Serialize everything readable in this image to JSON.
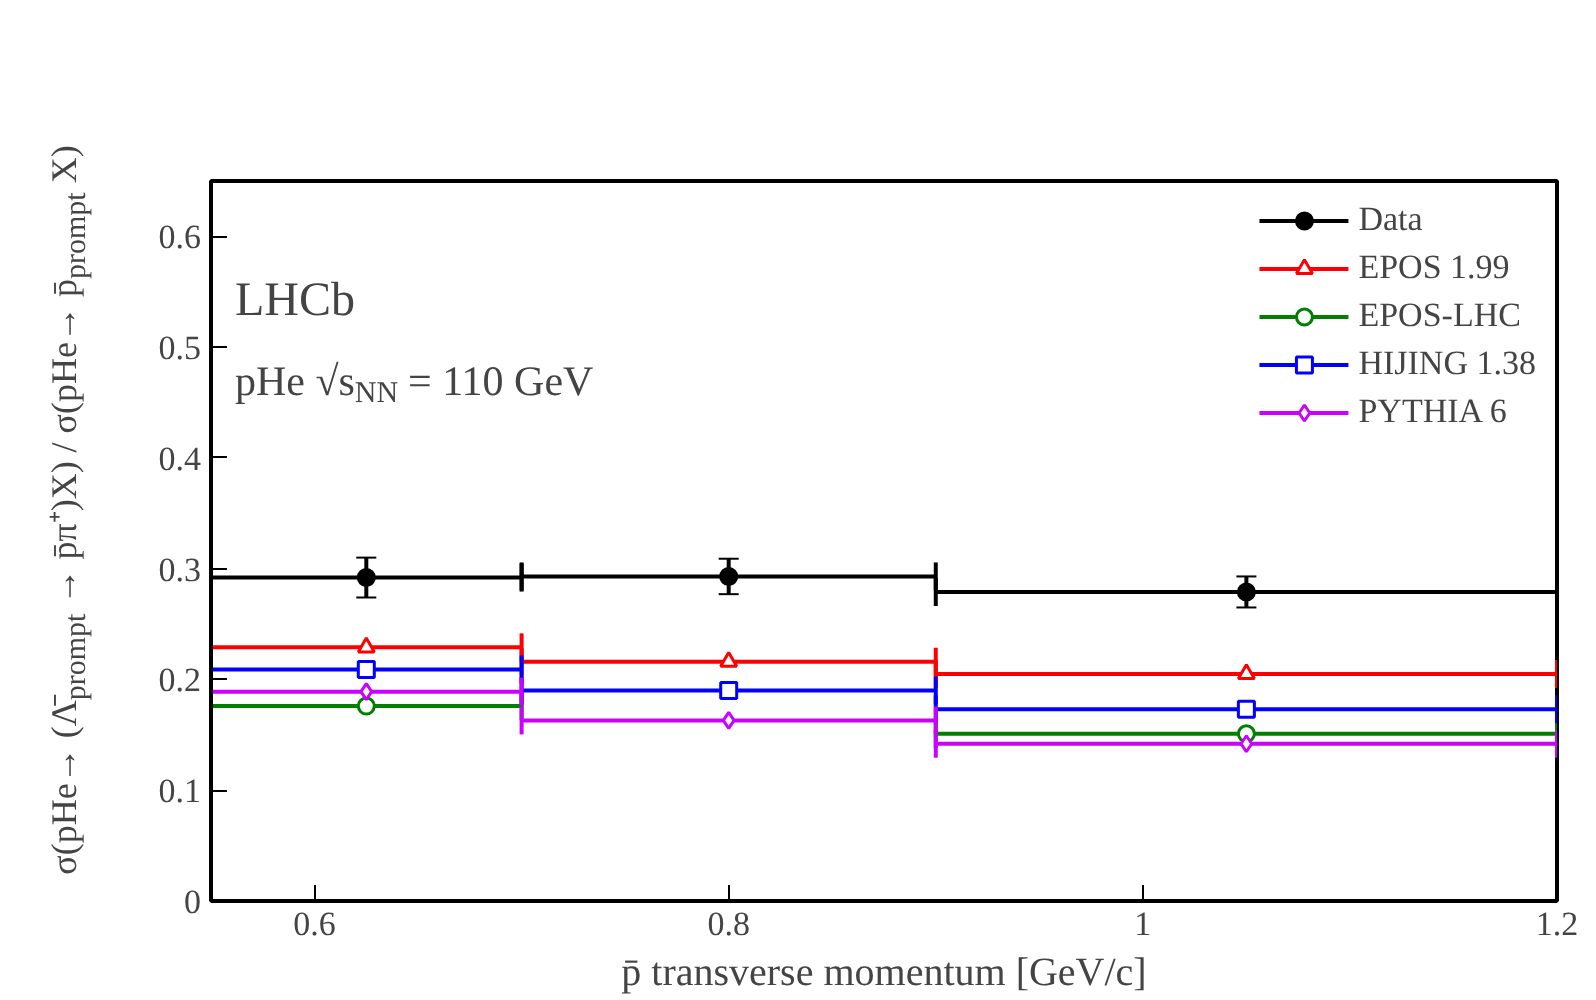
{
  "chart_data": {
    "type": "scatter",
    "xlabel": "p̄ transverse momentum [GeV/c]",
    "ylabel": "σ(pHe→ (Λ̄$_{prompt}$ → p̄π⁺)X) / σ(pHe→ p̄$_{prompt}$ X)",
    "annotations": [
      "LHCb",
      "pHe √s$_{NN}$ = 110 GeV"
    ],
    "x": [
      0.625,
      0.8,
      1.05
    ],
    "series": [
      {
        "name": "Data",
        "color": "#000000",
        "marker": "circle",
        "values": [
          0.292,
          0.293,
          0.279
        ],
        "errors": [
          0.018,
          0.016,
          0.014
        ],
        "xerrors": [
          0.075,
          0.1,
          0.15
        ]
      },
      {
        "name": "EPOS 1.99",
        "color": "#ff0000",
        "marker": "triangle",
        "values": [
          0.229,
          0.216,
          0.205
        ],
        "xerrors": [
          0.075,
          0.1,
          0.15
        ]
      },
      {
        "name": "EPOS-LHC",
        "color": "#007f00",
        "marker": "circle",
        "values": [
          0.176,
          null,
          0.151
        ],
        "xerrors": [
          0.075,
          null,
          0.15
        ]
      },
      {
        "name": "HIJING 1.38",
        "color": "#0000ff",
        "marker": "square",
        "values": [
          0.209,
          0.19,
          0.173
        ],
        "xerrors": [
          0.075,
          0.1,
          0.15
        ]
      },
      {
        "name": "PYTHIA 6",
        "color": "#cc00ff",
        "marker": "diamond",
        "values": [
          0.189,
          0.163,
          0.142
        ],
        "xerrors": [
          0.075,
          0.1,
          0.15
        ]
      }
    ],
    "xlim": [
      0.55,
      1.2
    ],
    "xticks": [
      0.6,
      0.8,
      1,
      1.2
    ],
    "ylim": [
      0,
      0.65
    ],
    "yticks": [
      0,
      0.1,
      0.2,
      0.3,
      0.4,
      0.5,
      0.6
    ],
    "legend": "top right",
    "grid": false
  }
}
